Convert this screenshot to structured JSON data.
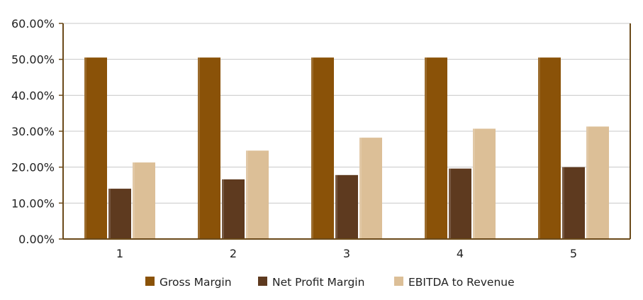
{
  "chart_data": {
    "type": "bar",
    "title": "",
    "xlabel": "",
    "ylabel": "",
    "categories": [
      "1",
      "2",
      "3",
      "4",
      "5"
    ],
    "ylim": [
      0,
      60
    ],
    "yticks": [
      "0.00%",
      "10.00%",
      "20.00%",
      "30.00%",
      "40.00%",
      "50.00%",
      "60.00%"
    ],
    "grid": true,
    "legend_position": "bottom-center",
    "series": [
      {
        "name": "Gross Margin",
        "color": "#8a5208",
        "values": [
          50.5,
          50.5,
          50.5,
          50.5,
          50.5
        ]
      },
      {
        "name": "Net Profit Margin",
        "color": "#5e3a1f",
        "values": [
          14.0,
          16.6,
          17.8,
          19.6,
          20.0
        ]
      },
      {
        "name": "EBITDA to Revenue",
        "color": "#dcbf97",
        "values": [
          21.3,
          24.6,
          28.2,
          30.7,
          31.3
        ]
      }
    ]
  }
}
